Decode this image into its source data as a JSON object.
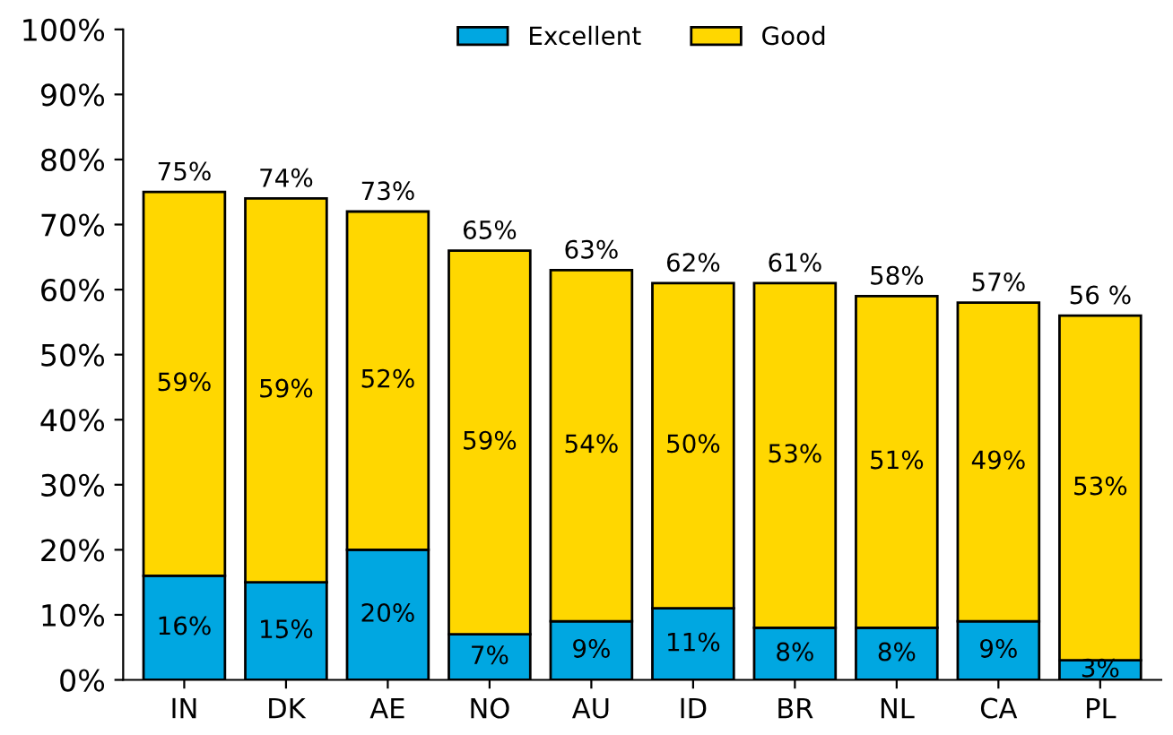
{
  "chart_data": {
    "type": "bar",
    "stacked": true,
    "categories": [
      "IN",
      "DK",
      "AE",
      "NO",
      "AU",
      "ID",
      "BR",
      "NL",
      "CA",
      "PL"
    ],
    "series": [
      {
        "name": "Excellent",
        "color": "#00a7e1",
        "values": [
          16,
          15,
          20,
          7,
          9,
          11,
          8,
          8,
          9,
          3
        ],
        "value_labels": [
          "16%",
          "15%",
          "20%",
          "7%",
          "9%",
          "11%",
          "8%",
          "8%",
          "9%",
          "3%"
        ]
      },
      {
        "name": "Good",
        "color": "#ffd700",
        "values": [
          59,
          59,
          52,
          59,
          54,
          50,
          53,
          51,
          49,
          53
        ],
        "value_labels": [
          "59%",
          "59%",
          "52%",
          "59%",
          "54%",
          "50%",
          "53%",
          "51%",
          "49%",
          "53%"
        ]
      }
    ],
    "totals": [
      "75%",
      "74%",
      "73%",
      "65%",
      "63%",
      "62%",
      "61%",
      "58%",
      "57%",
      "56 %"
    ],
    "ylim": [
      0,
      100
    ],
    "yticks": [
      {
        "value": 0,
        "label": "0%"
      },
      {
        "value": 10,
        "label": "10%"
      },
      {
        "value": 20,
        "label": "20%"
      },
      {
        "value": 30,
        "label": "30%"
      },
      {
        "value": 40,
        "label": "40%"
      },
      {
        "value": 50,
        "label": "50%"
      },
      {
        "value": 60,
        "label": "60%"
      },
      {
        "value": 70,
        "label": "70%"
      },
      {
        "value": 80,
        "label": "80%"
      },
      {
        "value": 90,
        "label": "90%"
      },
      {
        "value": 100,
        "label": "100%"
      }
    ],
    "grid": false,
    "legend": "top"
  }
}
